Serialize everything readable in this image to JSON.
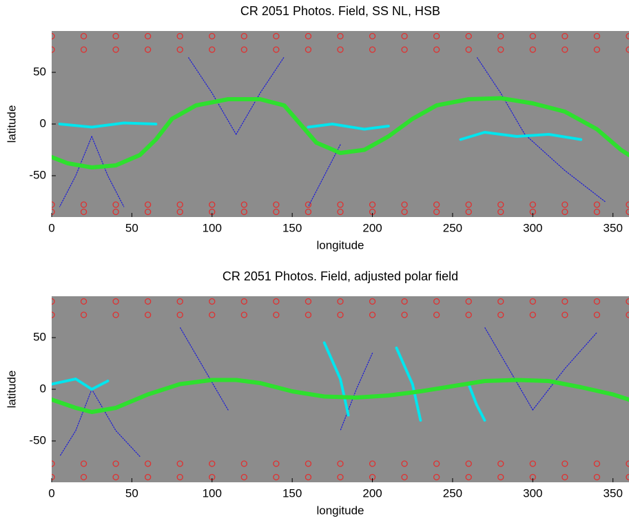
{
  "chart_data": [
    {
      "type": "line",
      "title": "CR 2051 Photos. Field, SS NL, HSB",
      "xlabel": "longitude",
      "ylabel": "latitude",
      "xlim": [
        0,
        360
      ],
      "ylim": [
        -90,
        90
      ],
      "xticks": [
        0,
        50,
        100,
        150,
        200,
        250,
        300,
        350
      ],
      "yticks": [
        -50,
        0,
        50
      ],
      "series": [
        {
          "color": "#e03030",
          "marker": "o",
          "x": [
            0,
            20,
            40,
            60,
            80,
            100,
            120,
            140,
            160,
            180,
            200,
            220,
            240,
            260,
            280,
            300,
            320,
            340,
            360
          ],
          "values": [
            85,
            85,
            85,
            85,
            85,
            85,
            85,
            85,
            85,
            85,
            85,
            85,
            85,
            85,
            85,
            85,
            85,
            85,
            85
          ]
        },
        {
          "color": "#e03030",
          "marker": "o",
          "x": [
            0,
            20,
            40,
            60,
            80,
            100,
            120,
            140,
            160,
            180,
            200,
            220,
            240,
            260,
            280,
            300,
            320,
            340,
            360
          ],
          "values": [
            72,
            72,
            72,
            72,
            72,
            72,
            72,
            72,
            72,
            72,
            72,
            72,
            72,
            72,
            72,
            72,
            72,
            72,
            72
          ]
        },
        {
          "color": "#e03030",
          "marker": "o",
          "x": [
            0,
            20,
            40,
            60,
            80,
            100,
            120,
            140,
            160,
            180,
            200,
            220,
            240,
            260,
            280,
            300,
            320,
            340,
            360
          ],
          "values": [
            -85,
            -85,
            -85,
            -85,
            -85,
            -85,
            -85,
            -85,
            -85,
            -85,
            -85,
            -85,
            -85,
            -85,
            -85,
            -85,
            -85,
            -85,
            -85
          ]
        },
        {
          "color": "#e03030",
          "marker": "o",
          "x": [
            0,
            20,
            40,
            60,
            80,
            100,
            120,
            140,
            160,
            180,
            200,
            220,
            240,
            260,
            280,
            300,
            320,
            340,
            360
          ],
          "values": [
            -78,
            -78,
            -78,
            -78,
            -78,
            -78,
            -78,
            -78,
            -78,
            -78,
            -78,
            -78,
            -78,
            -78,
            -78,
            -78,
            -78,
            -78,
            -78
          ]
        },
        {
          "color": "#1a1ad8",
          "x": [
            25,
            15,
            5
          ],
          "values": [
            -12,
            -50,
            -80
          ]
        },
        {
          "color": "#1a1ad8",
          "x": [
            25,
            35,
            45
          ],
          "values": [
            -12,
            -50,
            -80
          ]
        },
        {
          "color": "#1a1ad8",
          "x": [
            115,
            100,
            85
          ],
          "values": [
            -10,
            30,
            65
          ]
        },
        {
          "color": "#1a1ad8",
          "x": [
            115,
            130,
            145
          ],
          "values": [
            -10,
            30,
            65
          ]
        },
        {
          "color": "#1a1ad8",
          "x": [
            180,
            170,
            160
          ],
          "values": [
            -20,
            -50,
            -80
          ]
        },
        {
          "color": "#1a1ad8",
          "x": [
            295,
            280,
            265
          ],
          "values": [
            -10,
            30,
            65
          ]
        },
        {
          "color": "#1a1ad8",
          "x": [
            295,
            320,
            345
          ],
          "values": [
            -10,
            -45,
            -75
          ]
        },
        {
          "color": "#00e5ee",
          "width": 4,
          "x": [
            5,
            25,
            45,
            65
          ],
          "values": [
            0,
            -3,
            1,
            0
          ]
        },
        {
          "color": "#00e5ee",
          "width": 4,
          "x": [
            160,
            175,
            195,
            210
          ],
          "values": [
            -3,
            0,
            -5,
            -2
          ]
        },
        {
          "color": "#00e5ee",
          "width": 4,
          "x": [
            255,
            270,
            290,
            310,
            330
          ],
          "values": [
            -15,
            -8,
            -12,
            -10,
            -15
          ]
        },
        {
          "color": "#2ee02e",
          "width": 6,
          "x": [
            0,
            10,
            25,
            40,
            55,
            65,
            75,
            90,
            110,
            130,
            145,
            155,
            165,
            180,
            195,
            210,
            225,
            240,
            260,
            280,
            300,
            320,
            340,
            355,
            360
          ],
          "values": [
            -32,
            -38,
            -42,
            -40,
            -30,
            -15,
            5,
            18,
            24,
            24,
            18,
            0,
            -18,
            -28,
            -25,
            -12,
            5,
            18,
            24,
            25,
            20,
            12,
            -5,
            -25,
            -30
          ]
        }
      ]
    },
    {
      "type": "line",
      "title": "CR 2051 Photos. Field, adjusted polar field",
      "xlabel": "longitude",
      "ylabel": "latitude",
      "xlim": [
        0,
        360
      ],
      "ylim": [
        -90,
        90
      ],
      "xticks": [
        0,
        50,
        100,
        150,
        200,
        250,
        300,
        350
      ],
      "yticks": [
        -50,
        0,
        50
      ],
      "series": [
        {
          "color": "#e03030",
          "marker": "o",
          "x": [
            0,
            20,
            40,
            60,
            80,
            100,
            120,
            140,
            160,
            180,
            200,
            220,
            240,
            260,
            280,
            300,
            320,
            340,
            360
          ],
          "values": [
            85,
            85,
            85,
            85,
            85,
            85,
            85,
            85,
            85,
            85,
            85,
            85,
            85,
            85,
            85,
            85,
            85,
            85,
            85
          ]
        },
        {
          "color": "#e03030",
          "marker": "o",
          "x": [
            0,
            20,
            40,
            60,
            80,
            100,
            120,
            140,
            160,
            180,
            200,
            220,
            240,
            260,
            280,
            300,
            320,
            340,
            360
          ],
          "values": [
            72,
            72,
            72,
            72,
            72,
            72,
            72,
            72,
            72,
            72,
            72,
            72,
            72,
            72,
            72,
            72,
            72,
            72,
            72
          ]
        },
        {
          "color": "#e03030",
          "marker": "o",
          "x": [
            0,
            20,
            40,
            60,
            80,
            100,
            120,
            140,
            160,
            180,
            200,
            220,
            240,
            260,
            280,
            300,
            320,
            340,
            360
          ],
          "values": [
            -85,
            -85,
            -85,
            -85,
            -85,
            -85,
            -85,
            -85,
            -85,
            -85,
            -85,
            -85,
            -85,
            -85,
            -85,
            -85,
            -85,
            -85,
            -85
          ]
        },
        {
          "color": "#e03030",
          "marker": "o",
          "x": [
            0,
            20,
            40,
            60,
            80,
            100,
            120,
            140,
            160,
            180,
            200,
            220,
            240,
            260,
            280,
            300,
            320,
            340,
            360
          ],
          "values": [
            -72,
            -72,
            -72,
            -72,
            -72,
            -72,
            -72,
            -72,
            -72,
            -72,
            -72,
            -72,
            -72,
            -72,
            -72,
            -72,
            -72,
            -72,
            -72
          ]
        },
        {
          "color": "#1a1ad8",
          "x": [
            25,
            15,
            5
          ],
          "values": [
            0,
            -40,
            -65
          ]
        },
        {
          "color": "#1a1ad8",
          "x": [
            25,
            40,
            55
          ],
          "values": [
            0,
            -40,
            -65
          ]
        },
        {
          "color": "#1a1ad8",
          "x": [
            110,
            95,
            80
          ],
          "values": [
            -20,
            20,
            60
          ]
        },
        {
          "color": "#1a1ad8",
          "x": [
            200,
            190,
            180
          ],
          "values": [
            35,
            0,
            -40
          ]
        },
        {
          "color": "#1a1ad8",
          "x": [
            300,
            285,
            270
          ],
          "values": [
            -20,
            20,
            60
          ]
        },
        {
          "color": "#1a1ad8",
          "x": [
            300,
            320,
            340
          ],
          "values": [
            -20,
            20,
            55
          ]
        },
        {
          "color": "#00e5ee",
          "width": 4,
          "x": [
            0,
            15,
            25,
            35
          ],
          "values": [
            5,
            10,
            0,
            8
          ]
        },
        {
          "color": "#00e5ee",
          "width": 4,
          "x": [
            170,
            180,
            185
          ],
          "values": [
            45,
            10,
            -25
          ]
        },
        {
          "color": "#00e5ee",
          "width": 4,
          "x": [
            215,
            225,
            230
          ],
          "values": [
            40,
            5,
            -30
          ]
        },
        {
          "color": "#00e5ee",
          "width": 4,
          "x": [
            260,
            265,
            270
          ],
          "values": [
            5,
            -15,
            -30
          ]
        },
        {
          "color": "#2ee02e",
          "width": 6,
          "x": [
            0,
            15,
            25,
            40,
            60,
            80,
            100,
            115,
            130,
            150,
            170,
            190,
            210,
            230,
            250,
            270,
            290,
            310,
            330,
            350,
            360
          ],
          "values": [
            -10,
            -18,
            -22,
            -18,
            -5,
            5,
            9,
            9,
            6,
            -2,
            -7,
            -8,
            -6,
            -2,
            3,
            8,
            9,
            8,
            2,
            -5,
            -10
          ]
        }
      ]
    }
  ]
}
